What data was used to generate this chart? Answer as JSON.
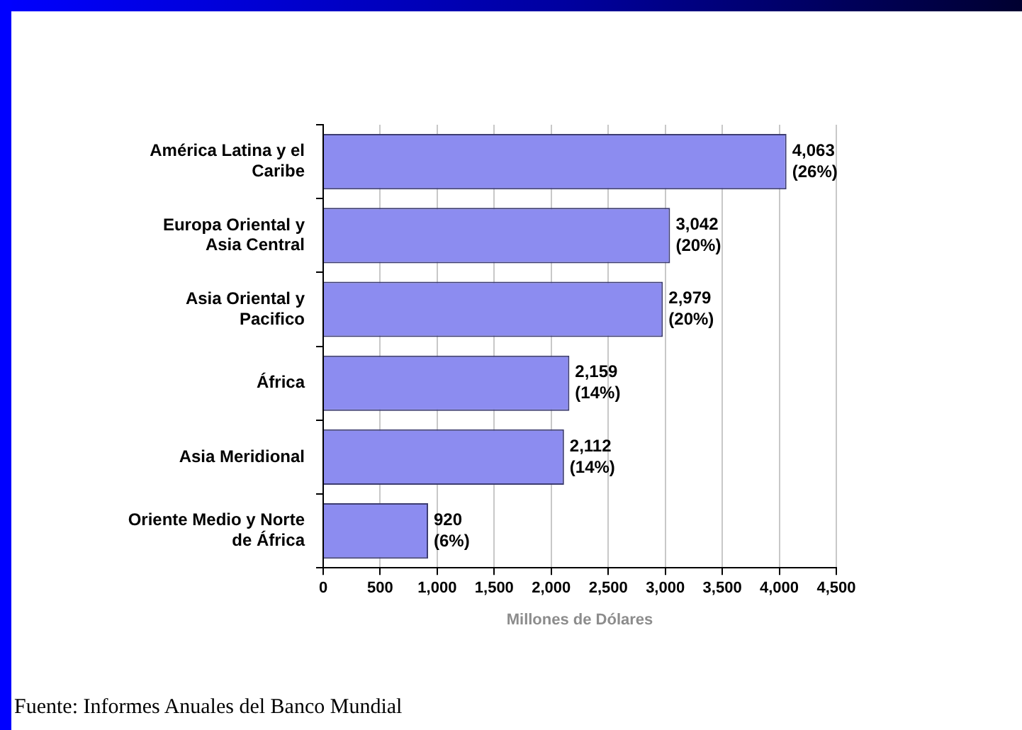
{
  "chart_data": {
    "type": "bar",
    "orientation": "horizontal",
    "categories": [
      "América Latina y el Caribe",
      "Europa Oriental y Asia Central",
      "Asia Oriental y Pacifico",
      "África",
      "Asia Meridional",
      "Oriente Medio y Norte de África"
    ],
    "values": [
      4063,
      3042,
      2979,
      2159,
      2112,
      920
    ],
    "value_labels": [
      "4,063 (26%)",
      "3,042 (20%)",
      "2,979 (20%)",
      "2,159 (14%)",
      "2,112 (14%)",
      "920 (6%)"
    ],
    "color": "#8c8cf0",
    "xlabel": "Millones de Dólares",
    "xlim": [
      0,
      4500
    ],
    "xticks": [
      {
        "value": 0,
        "label": "0"
      },
      {
        "value": 500,
        "label": "500"
      },
      {
        "value": 1000,
        "label": "1,000"
      },
      {
        "value": 1500,
        "label": "1,500"
      },
      {
        "value": 2000,
        "label": "2,000"
      },
      {
        "value": 2500,
        "label": "2,500"
      },
      {
        "value": 3000,
        "label": "3,000"
      },
      {
        "value": 3500,
        "label": "3,500"
      },
      {
        "value": 4000,
        "label": "4,000"
      },
      {
        "value": 4500,
        "label": "4,500"
      }
    ],
    "grid": "x",
    "legend": false,
    "annotations": [
      "Fuente: Informes Anuales del Banco Mundial"
    ]
  }
}
